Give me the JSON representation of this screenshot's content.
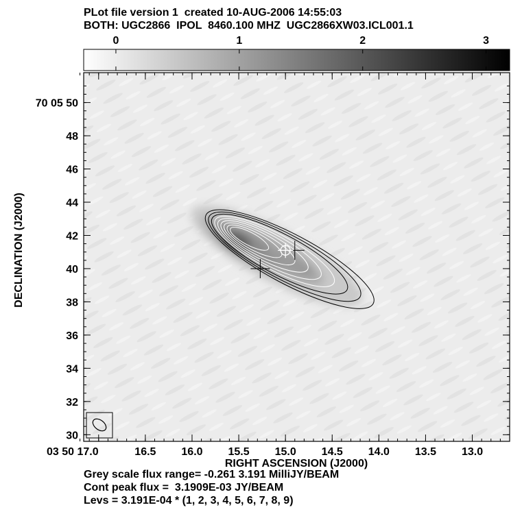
{
  "header": {
    "line1": "PLot file version 1  created 10-AUG-2006 14:55:03",
    "line2": "BOTH: UGC2866  IPOL  8460.100 MHZ  UGC2866XW03.ICL001.1"
  },
  "footer": {
    "line1": "Grey scale flux range= -0.261 3.191 MilliJY/BEAM",
    "line2": "Cont peak flux =  3.1909E-03 JY/BEAM",
    "line3": "Levs = 3.191E-04 * (1, 2, 3, 4, 5, 6, 7, 8, 9)"
  },
  "chart_data": {
    "type": "heatmap",
    "title": "",
    "xlabel": "RIGHT ASCENSION (J2000)",
    "ylabel": "DECLINATION (J2000)",
    "x_tick_labels": [
      "03 50 17.0",
      "16.5",
      "16.0",
      "15.5",
      "15.0",
      "14.5",
      "14.0",
      "13.5",
      "13.0"
    ],
    "x_tick_values_sec": [
      17.0,
      16.5,
      16.0,
      15.5,
      15.0,
      14.5,
      14.0,
      13.5,
      13.0
    ],
    "xlim_sec": [
      17.16,
      12.6
    ],
    "y_tick_labels": [
      "70 05 50",
      "48",
      "46",
      "44",
      "42",
      "40",
      "38",
      "36",
      "34",
      "32",
      "30"
    ],
    "y_tick_values_arcsec": [
      50,
      48,
      46,
      44,
      42,
      40,
      38,
      36,
      34,
      32,
      30
    ],
    "ylim_arcsec": [
      29.6,
      51.8
    ],
    "colorbar": {
      "tick_labels": [
        "0",
        "1",
        "2",
        "3"
      ],
      "tick_values": [
        0,
        1,
        2,
        3
      ],
      "range": [
        -0.261,
        3.191
      ],
      "unit": "MilliJY/BEAM"
    },
    "contour_base": 0.0003191,
    "contour_levels": [
      1,
      2,
      3,
      4,
      5,
      6,
      7,
      8,
      9
    ],
    "peak": {
      "ra_sec": 15.5,
      "dec_arcsec": 42.0
    },
    "markers": [
      {
        "type": "cross",
        "ra_sec": 15.27,
        "dec_arcsec": 40.0
      },
      {
        "type": "cross",
        "ra_sec": 14.9,
        "dec_arcsec": 41.1
      },
      {
        "type": "circle-cross",
        "ra_sec": 15.0,
        "dec_arcsec": 41.1
      }
    ],
    "grid": false
  }
}
